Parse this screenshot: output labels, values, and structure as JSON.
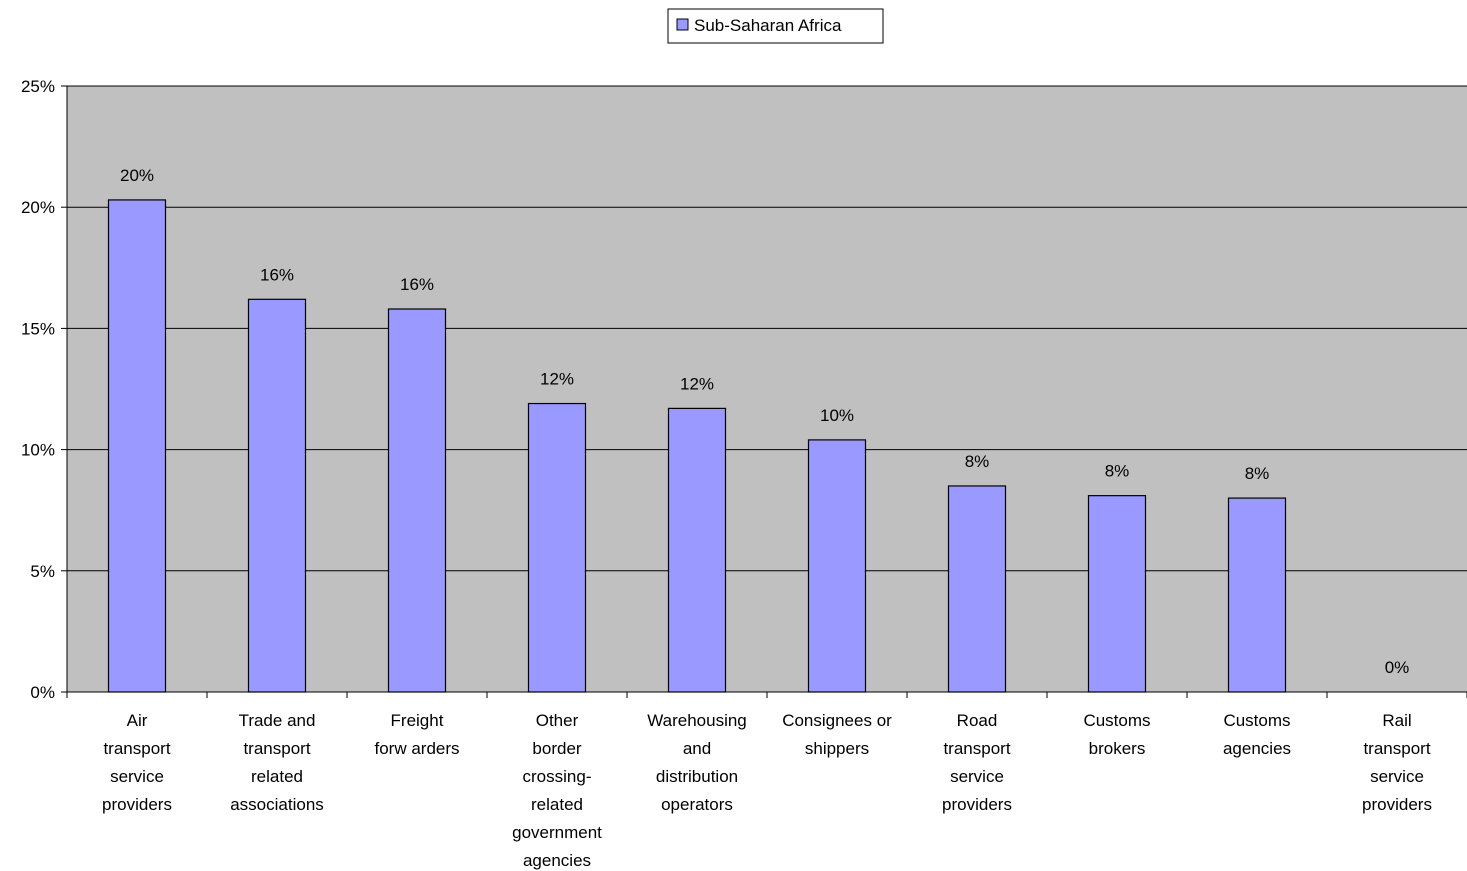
{
  "chart_data": {
    "type": "bar",
    "categories": [
      [
        "Air",
        "transport",
        "service",
        "providers"
      ],
      [
        "Trade and",
        "transport",
        "related",
        "associations"
      ],
      [
        "Freight",
        "forw arders"
      ],
      [
        "Other",
        "border",
        "crossing-",
        "related",
        "government",
        "agencies"
      ],
      [
        "Warehousing",
        "and",
        "distribution",
        "operators"
      ],
      [
        "Consignees or",
        "shippers"
      ],
      [
        "Road",
        "transport",
        "service",
        "providers"
      ],
      [
        "Customs",
        "brokers"
      ],
      [
        "Customs",
        "agencies"
      ],
      [
        "Rail",
        "transport",
        "service",
        "providers"
      ]
    ],
    "series": [
      {
        "name": "Sub-Saharan Africa",
        "values": [
          20.3,
          16.2,
          15.8,
          11.9,
          11.7,
          10.4,
          8.5,
          8.1,
          8.0,
          0.0
        ],
        "labels": [
          "20%",
          "16%",
          "16%",
          "12%",
          "12%",
          "10%",
          "8%",
          "8%",
          "8%",
          "0%"
        ]
      }
    ],
    "ylim": [
      0,
      25
    ],
    "yticks": [
      0,
      5,
      10,
      15,
      20,
      25
    ],
    "ytick_labels": [
      "0%",
      "5%",
      "10%",
      "15%",
      "20%",
      "25%"
    ],
    "xlabel": "",
    "ylabel": "",
    "grid": "horizontal",
    "legend_position": "top-center",
    "colors": {
      "bar_fill": "#9999ff",
      "bar_stroke": "#000000",
      "plot_background": "#c0c0c0",
      "gridline": "#000000"
    }
  }
}
